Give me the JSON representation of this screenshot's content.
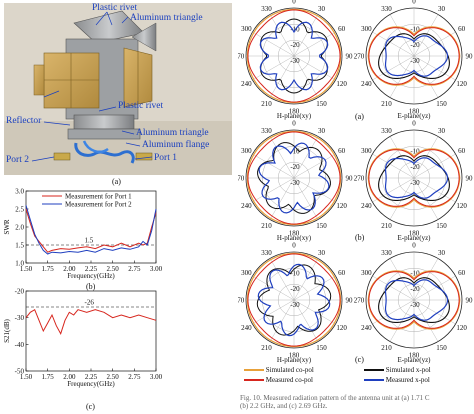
{
  "photo": {
    "labels": {
      "plastic_rivet_top": "Plastic rivet",
      "aluminum_triangle_top": "Aluminum triangle",
      "plastic_rivet_mid": "Plastic rivet",
      "reflector": "Reflector",
      "aluminum_triangle_bot": "Aluminum triangle",
      "aluminum_flange": "Aluminum flange",
      "port2": "Port 2",
      "port1": "Port 1"
    },
    "caption": "(a)"
  },
  "swr_chart": {
    "caption": "(b)",
    "ref_label": "1.5"
  },
  "s21_chart": {
    "caption": "(c)",
    "ref_label": "-26"
  },
  "radiation_patterns": {
    "captions": [
      "(a)",
      "(b)",
      "(c)"
    ],
    "h_plane": "H-plane(xy)",
    "e_plane": "E-plane(yz)",
    "angle_ticks": {
      "top": "0",
      "right": "90",
      "left": "270",
      "bottom": "180",
      "tl": "330",
      "tr": "30",
      "ml": "300",
      "mr": "60",
      "bl": "240",
      "br": "120",
      "bbl": "210",
      "bbr": "150"
    },
    "radial_ticks": [
      "-10",
      "-20",
      "-30"
    ]
  },
  "legend": {
    "items": [
      {
        "label": "Simulated co-pol",
        "color": "#e8a13a"
      },
      {
        "label": "Simulated x-pol",
        "color": "#111111"
      },
      {
        "label": "Measured co-pol",
        "color": "#d7261e"
      },
      {
        "label": "Measured x-pol",
        "color": "#1f3fbf"
      }
    ]
  },
  "figure_caption": {
    "line1": "Fig. 10.    Measured radiation pattern of the antenna unit at (a) 1.71 C",
    "line2": "(b) 2.2 GHz, and (c) 2.69 GHz."
  },
  "chart_data": [
    {
      "type": "line",
      "xlabel": "Frequency(GHz)",
      "ylabel": "SWR",
      "xlim": [
        1.5,
        3.0
      ],
      "ylim": [
        1.0,
        3.0
      ],
      "xticks": [
        "1.50",
        "1.75",
        "2.00",
        "2.25",
        "2.50",
        "2.75",
        "3.00"
      ],
      "yticks": [
        "1.0",
        "1.5",
        "2.0",
        "2.5",
        "3.0"
      ],
      "reference_line": 1.5,
      "legend": [
        "Measurement for Port 1",
        "Measurement for Port 2"
      ],
      "series": [
        {
          "name": "Measurement for Port 1",
          "color": "#d7261e",
          "x": [
            1.5,
            1.55,
            1.6,
            1.65,
            1.7,
            1.75,
            1.8,
            1.9,
            2.0,
            2.1,
            2.2,
            2.3,
            2.4,
            2.5,
            2.6,
            2.7,
            2.8,
            2.85,
            2.9,
            2.95,
            3.0
          ],
          "y": [
            2.5,
            2.1,
            1.75,
            1.6,
            1.45,
            1.3,
            1.35,
            1.4,
            1.38,
            1.42,
            1.45,
            1.4,
            1.5,
            1.45,
            1.55,
            1.45,
            1.55,
            1.5,
            1.55,
            2.0,
            2.4
          ]
        },
        {
          "name": "Measurement for Port 2",
          "color": "#1f3fbf",
          "x": [
            1.5,
            1.55,
            1.6,
            1.65,
            1.7,
            1.75,
            1.8,
            1.9,
            2.0,
            2.1,
            2.2,
            2.3,
            2.4,
            2.5,
            2.6,
            2.7,
            2.8,
            2.85,
            2.9,
            2.95,
            3.0
          ],
          "y": [
            2.6,
            2.2,
            1.8,
            1.55,
            1.35,
            1.25,
            1.3,
            1.28,
            1.32,
            1.3,
            1.35,
            1.3,
            1.4,
            1.35,
            1.42,
            1.38,
            1.45,
            1.6,
            1.5,
            1.9,
            2.5
          ]
        }
      ]
    },
    {
      "type": "line",
      "xlabel": "Frequency(GHz)",
      "ylabel": "S21(dB)",
      "xlim": [
        1.5,
        3.0
      ],
      "ylim": [
        -50,
        -20
      ],
      "xticks": [
        "1.50",
        "1.75",
        "2.00",
        "2.25",
        "2.50",
        "2.75",
        "3.00"
      ],
      "yticks": [
        "-50",
        "-40",
        "-30",
        "-20"
      ],
      "reference_line": -26,
      "series": [
        {
          "name": "S21",
          "color": "#d7261e",
          "x": [
            1.5,
            1.55,
            1.6,
            1.65,
            1.7,
            1.75,
            1.8,
            1.85,
            1.9,
            1.95,
            2.0,
            2.05,
            2.1,
            2.2,
            2.3,
            2.4,
            2.5,
            2.6,
            2.7,
            2.8,
            2.9,
            3.0
          ],
          "y": [
            -30,
            -28,
            -27,
            -31,
            -35,
            -32,
            -29,
            -33,
            -36,
            -31,
            -28,
            -29,
            -27,
            -28,
            -27,
            -28,
            -30,
            -29,
            -30,
            -29,
            -30,
            -31
          ]
        }
      ]
    }
  ]
}
